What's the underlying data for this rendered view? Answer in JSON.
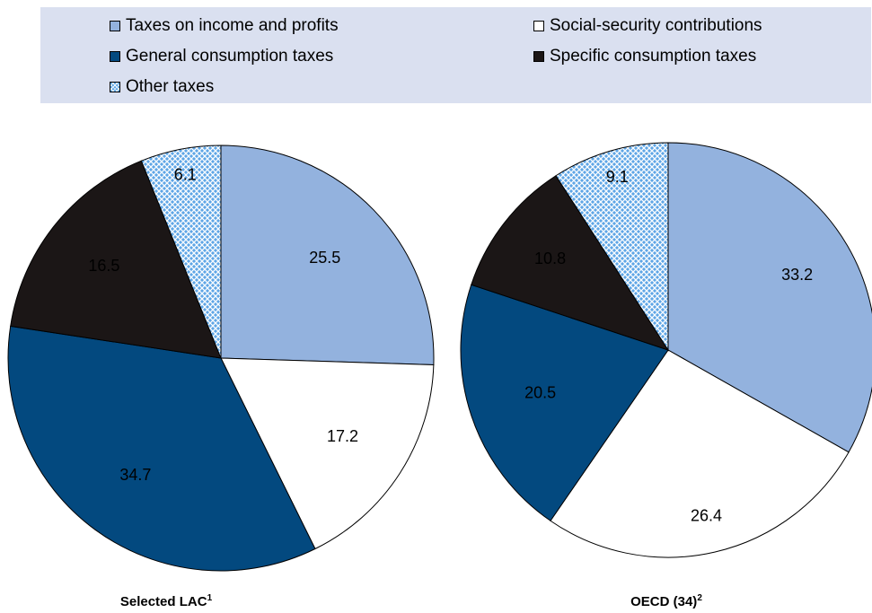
{
  "legend": [
    {
      "label": "Taxes on income and profits",
      "color": "#93b2de",
      "pattern": "solid"
    },
    {
      "label": "Social-security contributions",
      "color": "#ffffff",
      "pattern": "solid"
    },
    {
      "label": "General consumption taxes",
      "color": "#03497f",
      "pattern": "solid"
    },
    {
      "label": "Specific consumption taxes",
      "color": "#1b1616",
      "pattern": "solid"
    },
    {
      "label": "Other taxes",
      "color": "#5fa6e6",
      "pattern": "crosshatch"
    }
  ],
  "chart_data": [
    {
      "type": "pie",
      "title": "Selected LAC",
      "title_superscript": "1",
      "categories": [
        "Taxes on income and profits",
        "Social-security contributions",
        "General consumption taxes",
        "Specific consumption taxes",
        "Other taxes"
      ],
      "values": [
        25.5,
        17.2,
        34.7,
        16.5,
        6.1
      ]
    },
    {
      "type": "pie",
      "title": "OECD (34)",
      "title_superscript": "2",
      "categories": [
        "Taxes on income and profits",
        "Social-security contributions",
        "General consumption taxes",
        "Specific consumption taxes",
        "Other taxes"
      ],
      "values": [
        33.2,
        26.4,
        20.5,
        10.8,
        9.1
      ]
    }
  ]
}
